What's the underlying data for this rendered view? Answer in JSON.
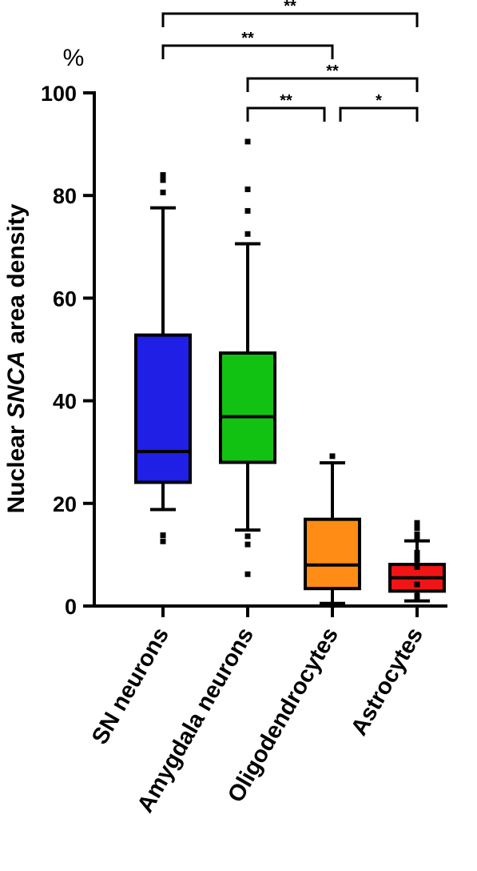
{
  "chart_data": {
    "type": "box",
    "unit": "%",
    "ylabel_parts": [
      "Nuclear ",
      "SNCA",
      " area density"
    ],
    "ylim": [
      0,
      100
    ],
    "yticks": [
      0,
      20,
      40,
      60,
      80,
      100
    ],
    "categories": [
      "SN neurons",
      "Amygdala neurons",
      "Oligodendrocytes",
      "Astrocytes"
    ],
    "series": [
      {
        "color": "#1f1fe6",
        "whisker_low": 18.8,
        "q1": 24.1,
        "median": 30.1,
        "q3": 52.8,
        "whisker_high": 77.6,
        "outliers": [
          84.0,
          83.0,
          80.6,
          13.8,
          12.6
        ]
      },
      {
        "color": "#12c212",
        "whisker_low": 14.8,
        "q1": 28.0,
        "median": 36.9,
        "q3": 49.3,
        "whisker_high": 70.6,
        "outliers": [
          90.5,
          81.2,
          77.0,
          72.5,
          13.6,
          12.0,
          6.2
        ]
      },
      {
        "color": "#ff8c14",
        "whisker_low": 0.5,
        "q1": 3.4,
        "median": 8.0,
        "q3": 16.9,
        "whisker_high": 27.9,
        "outliers": [
          29.2,
          0.2
        ]
      },
      {
        "color": "#f01414",
        "whisker_low": 1.0,
        "q1": 2.9,
        "median": 5.5,
        "q3": 8.1,
        "whisker_high": 12.7,
        "outliers": [
          16.2,
          15.2,
          14.0,
          13.2,
          10.4,
          9.6,
          9.0,
          7.6,
          4.2,
          2.0,
          1.8
        ]
      }
    ],
    "significance": [
      {
        "from": 0,
        "to": 3,
        "label": "**"
      },
      {
        "from": 0,
        "to": 2,
        "label": "**"
      },
      {
        "from": 1,
        "to": 3,
        "label": "**"
      },
      {
        "from": 1,
        "to": 2,
        "label": "**"
      },
      {
        "from": 2,
        "to": 3,
        "label": "*"
      }
    ]
  }
}
